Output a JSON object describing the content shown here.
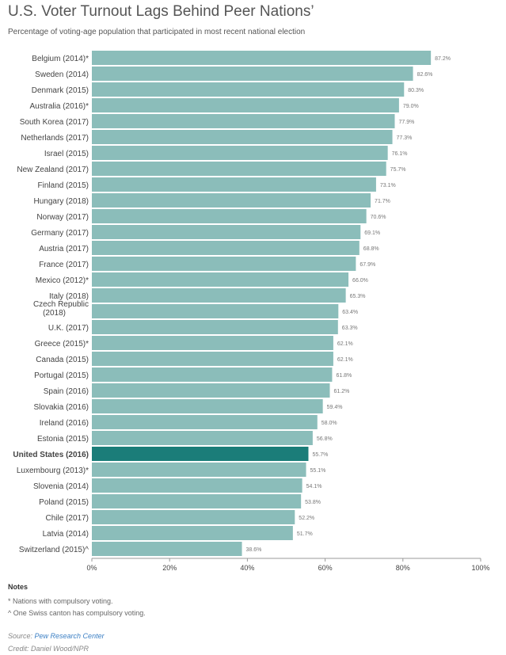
{
  "title": "U.S. Voter Turnout Lags Behind Peer Nations’",
  "subtitle": "Percentage of voting-age population that participated in most recent national election",
  "notes": {
    "heading": "Notes",
    "lines": [
      "* Nations with compulsory voting.",
      "^ One Swiss canton has compulsory voting."
    ]
  },
  "source": {
    "prefix": "Source: ",
    "link_text": "Pew Research Center"
  },
  "credit": "Credit: Daniel Wood/NPR",
  "colors": {
    "bar": "#8bbdba",
    "highlight": "#1b7d79",
    "axis": "#999999",
    "text": "#444444"
  },
  "chart_data": {
    "type": "bar",
    "orientation": "horizontal",
    "categories": [
      "Belgium (2014)*",
      "Sweden (2014)",
      "Denmark (2015)",
      "Australia (2016)*",
      "South Korea (2017)",
      "Netherlands (2017)",
      "Israel (2015)",
      "New Zealand (2017)",
      "Finland (2015)",
      "Hungary (2018)",
      "Norway (2017)",
      "Germany (2017)",
      "Austria (2017)",
      "France (2017)",
      "Mexico (2012)*",
      "Italy (2018)",
      "Czech Republic (2018)",
      "U.K. (2017)",
      "Greece (2015)*",
      "Canada (2015)",
      "Portugal (2015)",
      "Spain (2016)",
      "Slovakia (2016)",
      "Ireland (2016)",
      "Estonia (2015)",
      "United States (2016)",
      "Luxembourg (2013)*",
      "Slovenia (2014)",
      "Poland (2015)",
      "Chile (2017)",
      "Latvia (2014)",
      "Switzerland (2015)^"
    ],
    "values": [
      87.2,
      82.6,
      80.3,
      79.0,
      77.9,
      77.3,
      76.1,
      75.7,
      73.1,
      71.7,
      70.6,
      69.1,
      68.8,
      67.9,
      66.0,
      65.3,
      63.4,
      63.3,
      62.1,
      62.1,
      61.8,
      61.2,
      59.4,
      58.0,
      56.8,
      55.7,
      55.1,
      54.1,
      53.8,
      52.2,
      51.7,
      38.6
    ],
    "value_labels": [
      "87.2%",
      "82.6%",
      "80.3%",
      "79.0%",
      "77.9%",
      "77.3%",
      "76.1%",
      "75.7%",
      "73.1%",
      "71.7%",
      "70.6%",
      "69.1%",
      "68.8%",
      "67.9%",
      "66.0%",
      "65.3%",
      "63.4%",
      "63.3%",
      "62.1%",
      "62.1%",
      "61.8%",
      "61.2%",
      "59.4%",
      "58.0%",
      "56.8%",
      "55.7%",
      "55.1%",
      "54.1%",
      "53.8%",
      "52.2%",
      "51.7%",
      "38.6%"
    ],
    "highlight": "United States (2016)",
    "xlim": [
      0,
      100
    ],
    "xticks": [
      "0%",
      "20%",
      "40%",
      "60%",
      "80%",
      "100%"
    ],
    "xtick_values": [
      0,
      20,
      40,
      60,
      80,
      100
    ],
    "grid": false
  }
}
